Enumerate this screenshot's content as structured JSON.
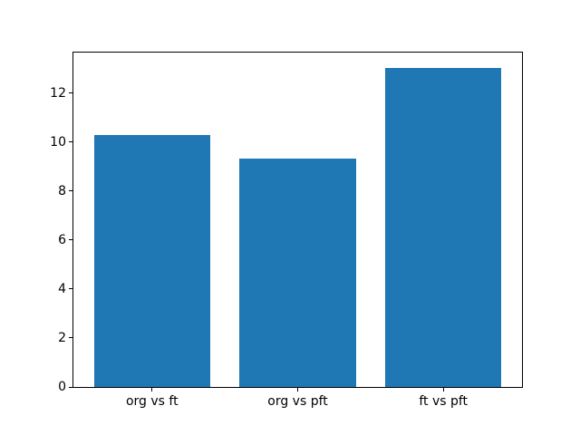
{
  "chart_data": {
    "type": "bar",
    "categories": [
      "org vs ft",
      "org vs pft",
      "ft vs pft"
    ],
    "values": [
      10.27,
      9.34,
      13.04
    ],
    "title": "",
    "xlabel": "",
    "ylabel": "",
    "yticks": [
      0,
      2,
      4,
      6,
      8,
      10,
      12
    ],
    "ytick_labels": [
      "0",
      "2",
      "4",
      "6",
      "8",
      "10",
      "12"
    ],
    "ylim": [
      0,
      13.65
    ],
    "xlim": [
      -0.54,
      2.54
    ],
    "bar_width_units": 0.8,
    "bar_color": "#1f77b4",
    "spine_color": "#000000",
    "tick_color": "#000000",
    "tick_label_color": "#000000",
    "background_color": "#ffffff",
    "grid": false,
    "legend_visible": false
  }
}
